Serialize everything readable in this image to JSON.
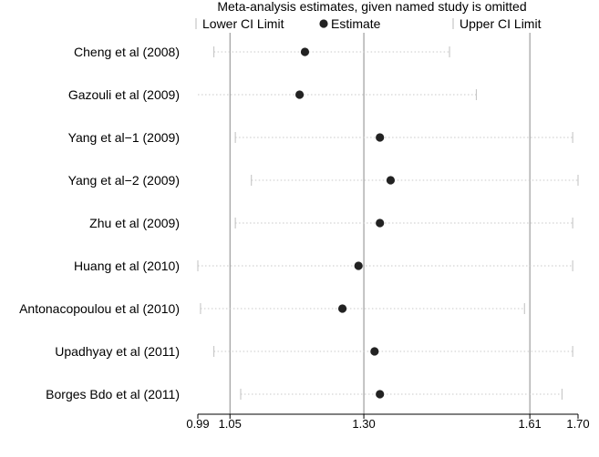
{
  "chart_data": {
    "type": "forest",
    "title": "Meta-analysis estimates, given named study is omitted",
    "legend": {
      "placement": "top",
      "items": [
        {
          "label": "Lower CI Limit",
          "marker": "tick"
        },
        {
          "label": "Estimate",
          "marker": "dot"
        },
        {
          "label": "Upper CI Limit",
          "marker": "tick"
        }
      ]
    },
    "xaxis": {
      "range": [
        0.99,
        1.7
      ],
      "ticks": [
        {
          "value": 0.99,
          "label": "0.99"
        },
        {
          "value": 1.05,
          "label": "1.05"
        },
        {
          "value": 1.3,
          "label": "1.30"
        },
        {
          "value": 1.61,
          "label": "1.61"
        },
        {
          "value": 1.7,
          "label": "1.70"
        }
      ],
      "reference_lines": [
        1.05,
        1.3,
        1.61
      ]
    },
    "studies": [
      {
        "label": "Cheng et al (2008)",
        "lower": 1.02,
        "estimate": 1.19,
        "upper": 1.46
      },
      {
        "label": "Gazouli et al (2009)",
        "lower": null,
        "estimate": 1.18,
        "upper": 1.51
      },
      {
        "label": "Yang et al−1 (2009)",
        "lower": 1.06,
        "estimate": 1.33,
        "upper": 1.69
      },
      {
        "label": "Yang et al−2 (2009)",
        "lower": 1.09,
        "estimate": 1.35,
        "upper": 1.7
      },
      {
        "label": "Zhu et al (2009)",
        "lower": 1.06,
        "estimate": 1.33,
        "upper": 1.69
      },
      {
        "label": "Huang et al (2010)",
        "lower": 0.99,
        "estimate": 1.29,
        "upper": 1.69
      },
      {
        "label": "Antonacopoulou et al (2010)",
        "lower": 0.995,
        "estimate": 1.26,
        "upper": 1.6
      },
      {
        "label": "Upadhyay et al (2011)",
        "lower": 1.02,
        "estimate": 1.32,
        "upper": 1.69
      },
      {
        "label": "Borges Bdo et al (2011)",
        "lower": 1.07,
        "estimate": 1.33,
        "upper": 1.67
      }
    ],
    "grid": false
  }
}
